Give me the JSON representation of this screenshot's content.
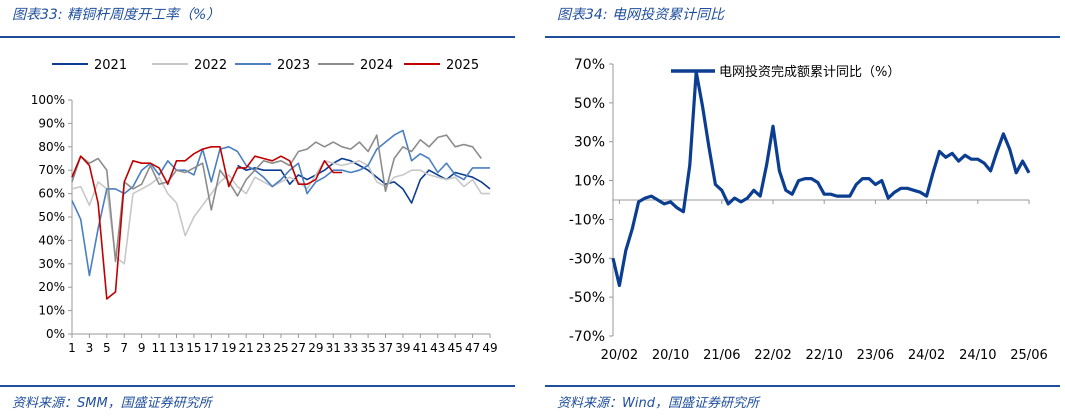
{
  "left": {
    "title": "图表33:  精铜杆周度开工率（%）",
    "source": "资料来源：SMM，国盛证券研究所",
    "chart_data": {
      "type": "line",
      "ylim": [
        0,
        100
      ],
      "yticks": [
        "0%",
        "10%",
        "20%",
        "30%",
        "40%",
        "50%",
        "60%",
        "70%",
        "80%",
        "90%",
        "100%"
      ],
      "xticks": [
        "1",
        "3",
        "5",
        "7",
        "9",
        "11",
        "13",
        "15",
        "17",
        "19",
        "21",
        "23",
        "25",
        "27",
        "29",
        "31",
        "33",
        "35",
        "37",
        "39",
        "41",
        "43",
        "45",
        "47",
        "49"
      ],
      "legend_position": "top",
      "series": [
        {
          "name": "2021",
          "color": "#0b3d91",
          "values": [
            null,
            null,
            null,
            null,
            null,
            null,
            null,
            null,
            null,
            null,
            null,
            null,
            null,
            null,
            null,
            null,
            null,
            null,
            null,
            72,
            70,
            71,
            70,
            70,
            70,
            64,
            68,
            66,
            68,
            70,
            73,
            75,
            74,
            72,
            70,
            67,
            64,
            65,
            62,
            56,
            66,
            70,
            68,
            66,
            69,
            68,
            67,
            65,
            62
          ]
        },
        {
          "name": "2022",
          "color": "#c8c8c8",
          "values": [
            62,
            63,
            55,
            65,
            62,
            33,
            30,
            60,
            62,
            64,
            67,
            60,
            56,
            42,
            50,
            55,
            60,
            65,
            68,
            63,
            60,
            67,
            65,
            63,
            65,
            67,
            65,
            62,
            68,
            74,
            73,
            72,
            73,
            74,
            72,
            65,
            63,
            67,
            68,
            70,
            70,
            68,
            67,
            66,
            67,
            63,
            66,
            60,
            60
          ]
        },
        {
          "name": "2023",
          "color": "#4a7fc1",
          "values": [
            57,
            49,
            25,
            45,
            62,
            62,
            60,
            63,
            70,
            73,
            68,
            74,
            70,
            70,
            68,
            79,
            65,
            79,
            80,
            78,
            72,
            70,
            67,
            63,
            66,
            70,
            73,
            60,
            65,
            67,
            70,
            70,
            69,
            70,
            72,
            79,
            82,
            85,
            87,
            74,
            77,
            75,
            69,
            73,
            68,
            66,
            71,
            71,
            71
          ]
        },
        {
          "name": "2024",
          "color": "#8c8c8c",
          "values": [
            65,
            76,
            73,
            75,
            70,
            31,
            65,
            62,
            64,
            72,
            64,
            65,
            70,
            69,
            71,
            73,
            53,
            70,
            65,
            59,
            66,
            70,
            74,
            73,
            74,
            72,
            78,
            79,
            82,
            80,
            82,
            80,
            79,
            82,
            78,
            85,
            61,
            75,
            80,
            78,
            83,
            80,
            84,
            85,
            80,
            81,
            80,
            75,
            null
          ]
        },
        {
          "name": "2025",
          "color": "#c00000",
          "values": [
            67,
            76,
            72,
            56,
            15,
            18,
            65,
            74,
            73,
            73,
            71,
            64,
            74,
            74,
            77,
            79,
            80,
            80,
            63,
            71,
            71,
            76,
            75,
            74,
            76,
            74,
            64,
            64,
            66,
            74,
            69,
            69,
            null,
            null,
            null,
            null,
            null,
            null,
            null,
            null,
            null,
            null,
            null,
            null,
            null,
            null,
            null,
            null,
            null
          ]
        }
      ]
    }
  },
  "right": {
    "title": "图表34:  电网投资累计同比",
    "source": "资料来源：Wind，国盛证券研究所",
    "chart_data": {
      "type": "line",
      "ylim": [
        -70,
        70
      ],
      "yticks": [
        "-70%",
        "-50%",
        "-30%",
        "-10%",
        "10%",
        "30%",
        "50%",
        "70%"
      ],
      "xticks": [
        "20/02",
        "20/10",
        "21/06",
        "22/02",
        "22/10",
        "23/06",
        "24/02",
        "24/10",
        "25/06"
      ],
      "legend_position": "top-left",
      "series": [
        {
          "name": "电网投资完成额累计同比（%）",
          "color": "#0b3d91",
          "x": [
            "20/01",
            "20/02",
            "20/03",
            "20/04",
            "20/05",
            "20/06",
            "20/07",
            "20/08",
            "20/09",
            "20/10",
            "20/11",
            "20/12",
            "21/01",
            "21/02",
            "21/03",
            "21/04",
            "21/05",
            "21/06",
            "21/07",
            "21/08",
            "21/09",
            "21/10",
            "21/11",
            "21/12",
            "22/01",
            "22/02",
            "22/03",
            "22/04",
            "22/05",
            "22/06",
            "22/07",
            "22/08",
            "22/09",
            "22/10",
            "22/11",
            "22/12",
            "23/01",
            "23/02",
            "23/03",
            "23/04",
            "23/05",
            "23/06",
            "23/07",
            "23/08",
            "23/09",
            "23/10",
            "23/11",
            "23/12",
            "24/01",
            "24/02",
            "24/03",
            "24/04",
            "24/05",
            "24/06",
            "24/07",
            "24/08",
            "24/09",
            "24/10",
            "24/11",
            "24/12",
            "25/01",
            "25/02",
            "25/03",
            "25/04",
            "25/05",
            "25/06"
          ],
          "values": [
            -30,
            -44,
            -26,
            -15,
            -1,
            1,
            2,
            0,
            -2,
            -1,
            -4,
            -6,
            18,
            66,
            48,
            27,
            8,
            5,
            -2,
            1,
            -1,
            1,
            5,
            2,
            18,
            38,
            15,
            5,
            3,
            10,
            11,
            11,
            9,
            3,
            3,
            2,
            2,
            2,
            8,
            11,
            11,
            8,
            10,
            1,
            4,
            6,
            6,
            5,
            4,
            2,
            14,
            25,
            22,
            24,
            20,
            23,
            21,
            21,
            19,
            15,
            25,
            34,
            26,
            14,
            20,
            14
          ]
        }
      ]
    }
  }
}
